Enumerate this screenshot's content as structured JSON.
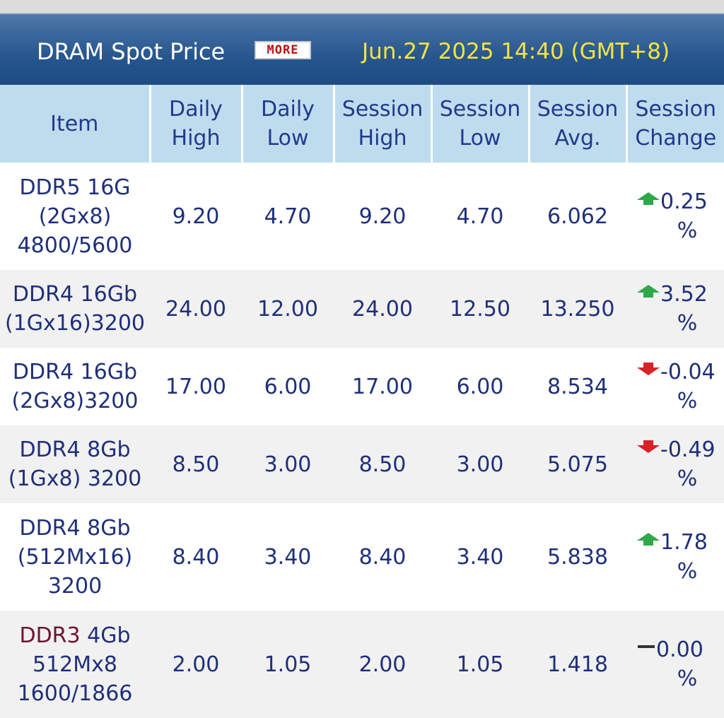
{
  "header": {
    "title": "DRAM Spot Price",
    "more_label": "MORE",
    "timestamp": "Jun.27 2025 14:40 (GMT+8)"
  },
  "columns": {
    "item": "Item",
    "daily_high": [
      "Daily",
      "High"
    ],
    "daily_low": [
      "Daily",
      "Low"
    ],
    "session_high": [
      "Session",
      "High"
    ],
    "session_low": [
      "Session",
      "Low"
    ],
    "session_avg": [
      "Session",
      "Avg."
    ],
    "session_change": [
      "Session",
      "Change"
    ]
  },
  "rows": [
    {
      "item": [
        "DDR5 16G",
        "(2Gx8)",
        "4800/5600"
      ],
      "daily_high": "9.20",
      "daily_low": "4.70",
      "session_high": "9.20",
      "session_low": "4.70",
      "session_avg": "6.062",
      "change": "0.25",
      "change_unit": "%",
      "direction": "up-icon"
    },
    {
      "item": [
        "DDR4 16Gb",
        "(1Gx16)3200"
      ],
      "daily_high": "24.00",
      "daily_low": "12.00",
      "session_high": "24.00",
      "session_low": "12.50",
      "session_avg": "13.250",
      "change": "3.52",
      "change_unit": "%",
      "direction": "up-icon"
    },
    {
      "item": [
        "DDR4 16Gb",
        "(2Gx8)3200"
      ],
      "daily_high": "17.00",
      "daily_low": "6.00",
      "session_high": "17.00",
      "session_low": "6.00",
      "session_avg": "8.534",
      "change": "-0.04",
      "change_unit": "%",
      "direction": "down-icon"
    },
    {
      "item": [
        "DDR4 8Gb",
        "(1Gx8) 3200"
      ],
      "daily_high": "8.50",
      "daily_low": "3.00",
      "session_high": "8.50",
      "session_low": "3.00",
      "session_avg": "5.075",
      "change": "-0.49",
      "change_unit": "%",
      "direction": "down-icon"
    },
    {
      "item": [
        "DDR4 8Gb",
        "(512Mx16)",
        "3200"
      ],
      "daily_high": "8.40",
      "daily_low": "3.40",
      "session_high": "8.40",
      "session_low": "3.40",
      "session_avg": "5.838",
      "change": "1.78",
      "change_unit": "%",
      "direction": "up-icon"
    },
    {
      "item_link": "DDR3",
      "item": [
        " 4Gb",
        "512Mx8",
        "1600/1866"
      ],
      "daily_high": "2.00",
      "daily_low": "1.05",
      "session_high": "2.00",
      "session_low": "1.05",
      "session_avg": "1.418",
      "change": "0.00",
      "change_unit": "%",
      "direction": "flat-icon"
    }
  ],
  "colors": {
    "header_bg": "#27568e",
    "title": "#ffffff",
    "timestamp": "#f5e342",
    "column_header_bg": "#bfdcee",
    "text": "#1f2f7a",
    "up": "#2fa84a",
    "down": "#d8222a",
    "flat": "#333333"
  }
}
